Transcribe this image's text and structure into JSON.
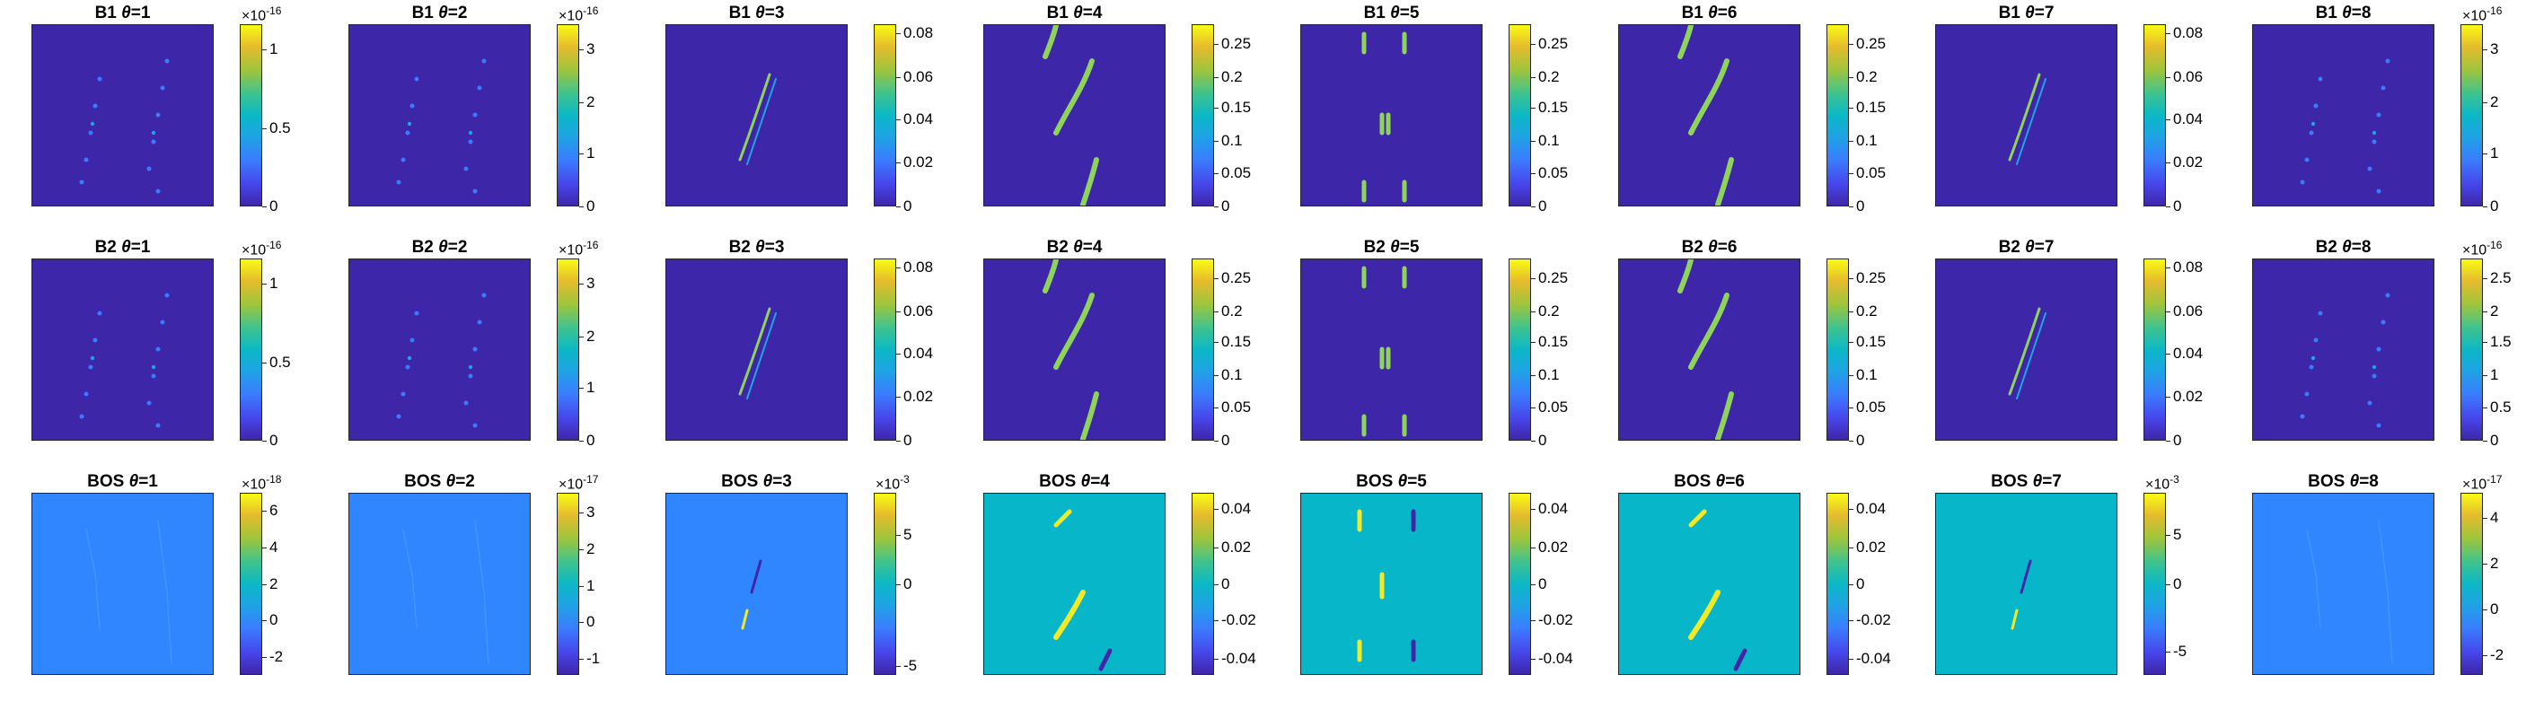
{
  "figure": {
    "colors": {
      "background_low": "#3e26a8",
      "background_cyan": "#07b6c8",
      "background_blue": "#2f86ff",
      "stripe_high": "#f1ea28",
      "stripe_green": "#8fd45a",
      "stripe_low": "#3e26a8"
    },
    "rows": [
      {
        "prefix": "B1",
        "panels": [
          {
            "theta": "1",
            "exp": "×10",
            "exp_pow": "-16",
            "ticks": [
              "1",
              "0.5",
              "0"
            ],
            "tick_pos": [
              0.86,
              0.43,
              0.0
            ],
            "bg": "background_low",
            "pattern": "sparse"
          },
          {
            "theta": "2",
            "exp": "×10",
            "exp_pow": "-16",
            "ticks": [
              "3",
              "2",
              "1",
              "0"
            ],
            "tick_pos": [
              0.86,
              0.57,
              0.29,
              0.0
            ],
            "bg": "background_low",
            "pattern": "sparse"
          },
          {
            "theta": "3",
            "exp": "",
            "exp_pow": "",
            "ticks": [
              "0.08",
              "0.06",
              "0.04",
              "0.02",
              "0"
            ],
            "tick_pos": [
              0.95,
              0.71,
              0.48,
              0.24,
              0.0
            ],
            "bg": "background_low",
            "pattern": "center"
          },
          {
            "theta": "4",
            "exp": "",
            "exp_pow": "",
            "ticks": [
              "0.25",
              "0.2",
              "0.15",
              "0.1",
              "0.05",
              "0"
            ],
            "tick_pos": [
              0.89,
              0.71,
              0.54,
              0.36,
              0.18,
              0.0
            ],
            "bg": "background_low",
            "pattern": "diag"
          },
          {
            "theta": "5",
            "exp": "",
            "exp_pow": "",
            "ticks": [
              "0.25",
              "0.2",
              "0.15",
              "0.1",
              "0.05",
              "0"
            ],
            "tick_pos": [
              0.89,
              0.71,
              0.54,
              0.36,
              0.18,
              0.0
            ],
            "bg": "background_low",
            "pattern": "vertical"
          },
          {
            "theta": "6",
            "exp": "",
            "exp_pow": "",
            "ticks": [
              "0.25",
              "0.2",
              "0.15",
              "0.1",
              "0.05",
              "0"
            ],
            "tick_pos": [
              0.89,
              0.71,
              0.54,
              0.36,
              0.18,
              0.0
            ],
            "bg": "background_low",
            "pattern": "diag2"
          },
          {
            "theta": "7",
            "exp": "",
            "exp_pow": "",
            "ticks": [
              "0.08",
              "0.06",
              "0.04",
              "0.02",
              "0"
            ],
            "tick_pos": [
              0.95,
              0.71,
              0.48,
              0.24,
              0.0
            ],
            "bg": "background_low",
            "pattern": "center2"
          },
          {
            "theta": "8",
            "exp": "×10",
            "exp_pow": "-16",
            "ticks": [
              "3",
              "2",
              "1",
              "0"
            ],
            "tick_pos": [
              0.86,
              0.57,
              0.29,
              0.0
            ],
            "bg": "background_low",
            "pattern": "sparse"
          }
        ]
      },
      {
        "prefix": "B2",
        "panels": [
          {
            "theta": "1",
            "exp": "×10",
            "exp_pow": "-16",
            "ticks": [
              "1",
              "0.5",
              "0"
            ],
            "tick_pos": [
              0.86,
              0.43,
              0.0
            ],
            "bg": "background_low",
            "pattern": "sparse"
          },
          {
            "theta": "2",
            "exp": "×10",
            "exp_pow": "-16",
            "ticks": [
              "3",
              "2",
              "1",
              "0"
            ],
            "tick_pos": [
              0.86,
              0.57,
              0.29,
              0.0
            ],
            "bg": "background_low",
            "pattern": "sparse"
          },
          {
            "theta": "3",
            "exp": "",
            "exp_pow": "",
            "ticks": [
              "0.08",
              "0.06",
              "0.04",
              "0.02",
              "0"
            ],
            "tick_pos": [
              0.95,
              0.71,
              0.48,
              0.24,
              0.0
            ],
            "bg": "background_low",
            "pattern": "center"
          },
          {
            "theta": "4",
            "exp": "",
            "exp_pow": "",
            "ticks": [
              "0.25",
              "0.2",
              "0.15",
              "0.1",
              "0.05",
              "0"
            ],
            "tick_pos": [
              0.89,
              0.71,
              0.54,
              0.36,
              0.18,
              0.0
            ],
            "bg": "background_low",
            "pattern": "diag"
          },
          {
            "theta": "5",
            "exp": "",
            "exp_pow": "",
            "ticks": [
              "0.25",
              "0.2",
              "0.15",
              "0.1",
              "0.05",
              "0"
            ],
            "tick_pos": [
              0.89,
              0.71,
              0.54,
              0.36,
              0.18,
              0.0
            ],
            "bg": "background_low",
            "pattern": "vertical"
          },
          {
            "theta": "6",
            "exp": "",
            "exp_pow": "",
            "ticks": [
              "0.25",
              "0.2",
              "0.15",
              "0.1",
              "0.05",
              "0"
            ],
            "tick_pos": [
              0.89,
              0.71,
              0.54,
              0.36,
              0.18,
              0.0
            ],
            "bg": "background_low",
            "pattern": "diag2"
          },
          {
            "theta": "7",
            "exp": "",
            "exp_pow": "",
            "ticks": [
              "0.08",
              "0.06",
              "0.04",
              "0.02",
              "0"
            ],
            "tick_pos": [
              0.95,
              0.71,
              0.48,
              0.24,
              0.0
            ],
            "bg": "background_low",
            "pattern": "center2"
          },
          {
            "theta": "8",
            "exp": "×10",
            "exp_pow": "-16",
            "ticks": [
              "2.5",
              "2",
              "1.5",
              "1",
              "0.5",
              "0"
            ],
            "tick_pos": [
              0.89,
              0.71,
              0.54,
              0.36,
              0.18,
              0.0
            ],
            "bg": "background_low",
            "pattern": "sparse"
          }
        ]
      },
      {
        "prefix": "BOS",
        "panels": [
          {
            "theta": "1",
            "exp": "×10",
            "exp_pow": "-18",
            "ticks": [
              "6",
              "4",
              "2",
              "0",
              "-2"
            ],
            "tick_pos": [
              0.9,
              0.7,
              0.5,
              0.3,
              0.1
            ],
            "bg": "background_blue",
            "pattern": "faint"
          },
          {
            "theta": "2",
            "exp": "×10",
            "exp_pow": "-17",
            "ticks": [
              "3",
              "2",
              "1",
              "0",
              "-1"
            ],
            "tick_pos": [
              0.89,
              0.69,
              0.49,
              0.29,
              0.09
            ],
            "bg": "background_blue",
            "pattern": "faint"
          },
          {
            "theta": "3",
            "exp": "×10",
            "exp_pow": "-3",
            "ticks": [
              "5",
              "0",
              "-5"
            ],
            "tick_pos": [
              0.77,
              0.5,
              0.05
            ],
            "bg": "background_blue",
            "pattern": "bos_center"
          },
          {
            "theta": "4",
            "exp": "",
            "exp_pow": "",
            "ticks": [
              "0.04",
              "0.02",
              "0",
              "-0.02",
              "-0.04"
            ],
            "tick_pos": [
              0.91,
              0.7,
              0.5,
              0.3,
              0.09
            ],
            "bg": "background_cyan",
            "pattern": "bos_diag"
          },
          {
            "theta": "5",
            "exp": "",
            "exp_pow": "",
            "ticks": [
              "0.04",
              "0.02",
              "0",
              "-0.02",
              "-0.04"
            ],
            "tick_pos": [
              0.91,
              0.7,
              0.5,
              0.3,
              0.09
            ],
            "bg": "background_cyan",
            "pattern": "bos_vertical"
          },
          {
            "theta": "6",
            "exp": "",
            "exp_pow": "",
            "ticks": [
              "0.04",
              "0.02",
              "0",
              "-0.02",
              "-0.04"
            ],
            "tick_pos": [
              0.91,
              0.7,
              0.5,
              0.3,
              0.09
            ],
            "bg": "background_cyan",
            "pattern": "bos_diag2"
          },
          {
            "theta": "7",
            "exp": "×10",
            "exp_pow": "-3",
            "ticks": [
              "5",
              "0",
              "-5"
            ],
            "tick_pos": [
              0.77,
              0.5,
              0.13
            ],
            "bg": "background_cyan",
            "pattern": "bos_center"
          },
          {
            "theta": "8",
            "exp": "×10",
            "exp_pow": "-17",
            "ticks": [
              "4",
              "2",
              "0",
              "-2"
            ],
            "tick_pos": [
              0.86,
              0.61,
              0.36,
              0.11
            ],
            "bg": "background_blue",
            "pattern": "faint"
          }
        ]
      }
    ]
  }
}
